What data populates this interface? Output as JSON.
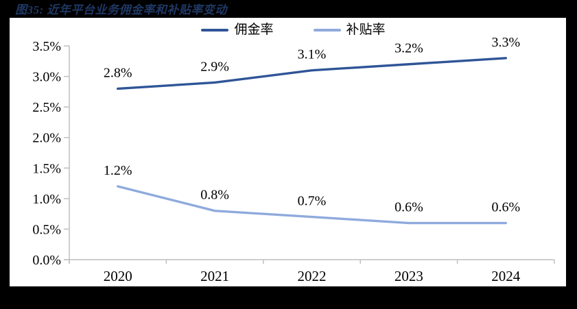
{
  "header": {
    "title_color": "#1F3864",
    "page_background": "#000000",
    "panel_background": "#FFFFFF"
  },
  "chart_data": {
    "type": "line",
    "title": "图35: 近年平台业务佣金率和补贴率变动",
    "categories": [
      "2020",
      "2021",
      "2022",
      "2023",
      "2024"
    ],
    "series": [
      {
        "name": "佣金率",
        "color": "#2F5597",
        "values": [
          2.8,
          2.9,
          3.1,
          3.2,
          3.3
        ],
        "point_labels": [
          "2.8%",
          "2.9%",
          "3.1%",
          "3.2%",
          "3.3%"
        ]
      },
      {
        "name": "补贴率",
        "color": "#8FAADC",
        "values": [
          1.2,
          0.8,
          0.7,
          0.6,
          0.6
        ],
        "point_labels": [
          "1.2%",
          "0.8%",
          "0.7%",
          "0.6%",
          "0.6%"
        ]
      }
    ],
    "y_axis": {
      "min": 0,
      "max": 3.5,
      "step": 0.5,
      "tick_labels": [
        "0.0%",
        "0.5%",
        "1.0%",
        "1.5%",
        "2.0%",
        "2.5%",
        "3.0%",
        "3.5%"
      ]
    },
    "x_axis": {
      "tick_labels": [
        "2020",
        "2021",
        "2022",
        "2023",
        "2024"
      ]
    },
    "legend_position": "top",
    "grid": false,
    "axis_color": "#BFBFBF",
    "label_color": "#000000"
  }
}
